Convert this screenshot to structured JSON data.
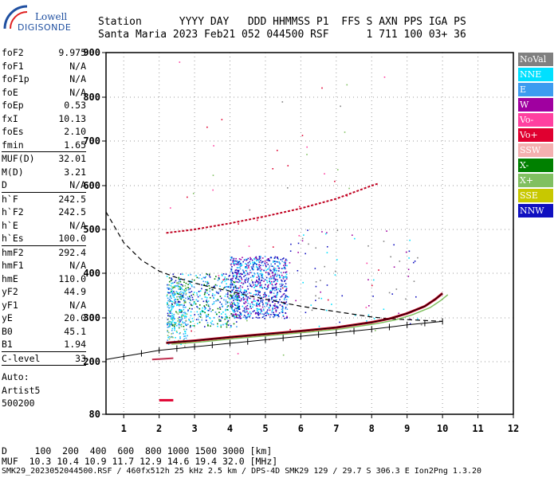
{
  "logo": {
    "brand_line1": "Lowell",
    "brand_line2": "DIGISONDE"
  },
  "header": {
    "line1": "Station      YYYY DAY   DDD HHMMSS P1  FFS S AXN PPS IGA PS",
    "line2": "Santa Maria 2023 Feb21 052 044500 RSF      1 711 100 03+ 36"
  },
  "sidebar": {
    "groups": [
      [
        {
          "label": "foF2",
          "value": "9.975"
        },
        {
          "label": "foF1",
          "value": "N/A"
        },
        {
          "label": "foF1p",
          "value": "N/A"
        },
        {
          "label": "foE",
          "value": "N/A"
        },
        {
          "label": "foEp",
          "value": "0.53"
        },
        {
          "label": "fxI",
          "value": "10.13"
        },
        {
          "label": "foEs",
          "value": "2.10"
        },
        {
          "label": "fmin",
          "value": "1.65"
        }
      ],
      [
        {
          "label": "MUF(D)",
          "value": "32.01"
        },
        {
          "label": "M(D)",
          "value": "3.21"
        },
        {
          "label": "D",
          "value": "N/A"
        }
      ],
      [
        {
          "label": "h`F",
          "value": "242.5"
        },
        {
          "label": "h`F2",
          "value": "242.5"
        },
        {
          "label": "h`E",
          "value": "N/A"
        },
        {
          "label": "h`Es",
          "value": "100.0"
        }
      ],
      [
        {
          "label": "hmF2",
          "value": "292.4"
        },
        {
          "label": "hmF1",
          "value": "N/A"
        },
        {
          "label": "hmE",
          "value": "110.0"
        },
        {
          "label": "yF2",
          "value": "44.9"
        },
        {
          "label": "yF1",
          "value": "N/A"
        },
        {
          "label": "yE",
          "value": "20.0"
        },
        {
          "label": "B0",
          "value": "45.1"
        },
        {
          "label": "B1",
          "value": "1.94"
        }
      ],
      [
        {
          "label": "C-level",
          "value": "33"
        }
      ]
    ],
    "auto_lines": [
      "Auto:",
      "Artist5",
      "500200"
    ]
  },
  "legend": [
    {
      "label": "NoVal",
      "color": "#808080"
    },
    {
      "label": "NNE",
      "color": "#00e0ff"
    },
    {
      "label": "E",
      "color": "#3c9cf0"
    },
    {
      "label": "W",
      "color": "#a000a0"
    },
    {
      "label": "Vo-",
      "color": "#ff40a0"
    },
    {
      "label": "Vo+",
      "color": "#e00030"
    },
    {
      "label": "SSW",
      "color": "#f4b0b0"
    },
    {
      "label": "X-",
      "color": "#008000"
    },
    {
      "label": "X+",
      "color": "#80c060"
    },
    {
      "label": "SSE",
      "color": "#c8c800"
    },
    {
      "label": "NNW",
      "color": "#1010c0"
    }
  ],
  "footer": {
    "line1": "D     100  200  400  600  800 1000 1500 3000 [km]",
    "line2": "MUF  10.3 10.4 10.9 11.7 12.9 14.6 19.4 32.0 [MHz]",
    "line3": "SMK29_2023052044500.RSF / 460fx512h 25 kHz 2.5 km / DPS-4D SMK29 129 / 29.7 S 306.3 E Ion2Png 1.3.20"
  },
  "chart_data": {
    "type": "scatter",
    "xlim": [
      0.5,
      12
    ],
    "ylim": [
      80,
      900
    ],
    "x_ticks": [
      1,
      2,
      3,
      4,
      5,
      6,
      7,
      8,
      9,
      10,
      11,
      12
    ],
    "y_ticks": [
      80,
      200,
      300,
      400,
      500,
      600,
      700,
      800,
      900
    ],
    "grid": true,
    "legend_position": "right",
    "profile_curve": {
      "x": [
        0.5,
        1.0,
        1.5,
        2.0,
        2.5,
        3.0,
        3.5,
        4.0,
        4.5,
        5.0,
        5.5,
        6.0,
        6.5,
        7.0,
        7.5,
        8.0,
        8.5,
        9.0,
        9.5,
        10.0
      ],
      "y": [
        540,
        470,
        430,
        405,
        390,
        378,
        368,
        360,
        350,
        342,
        334,
        326,
        320,
        314,
        308,
        302,
        298,
        296,
        294,
        292
      ]
    },
    "scaled_trace": {
      "x": [
        0.5,
        1.0,
        1.5,
        2.0,
        2.5,
        3.0,
        3.5,
        4.0,
        4.5,
        5.0,
        5.5,
        6.0,
        6.5,
        7.0,
        7.5,
        8.0,
        8.5,
        9.0,
        9.5,
        10.0
      ],
      "y": [
        205,
        212,
        219,
        226,
        230,
        234,
        238,
        242,
        246,
        250,
        254,
        258,
        262,
        266,
        270,
        274,
        279,
        284,
        288,
        292
      ]
    },
    "f2_trace": {
      "x": [
        2.2,
        3.0,
        4.0,
        5.0,
        6.0,
        7.0,
        8.0,
        8.5,
        9.0,
        9.5,
        9.8,
        10.0
      ],
      "y": [
        243,
        248,
        256,
        263,
        270,
        278,
        290,
        298,
        310,
        326,
        342,
        355
      ]
    },
    "f2_multihop": {
      "x": [
        2.2,
        3.0,
        4.0,
        5.0,
        6.0,
        7.0,
        8.0,
        8.2
      ],
      "y": [
        492,
        500,
        514,
        530,
        548,
        570,
        600,
        605
      ]
    },
    "es_trace": {
      "x": [
        1.8,
        2.4
      ],
      "y": [
        205,
        208
      ]
    },
    "low_trace": {
      "x": [
        2.0,
        2.4
      ],
      "y": [
        112,
        112
      ]
    }
  }
}
